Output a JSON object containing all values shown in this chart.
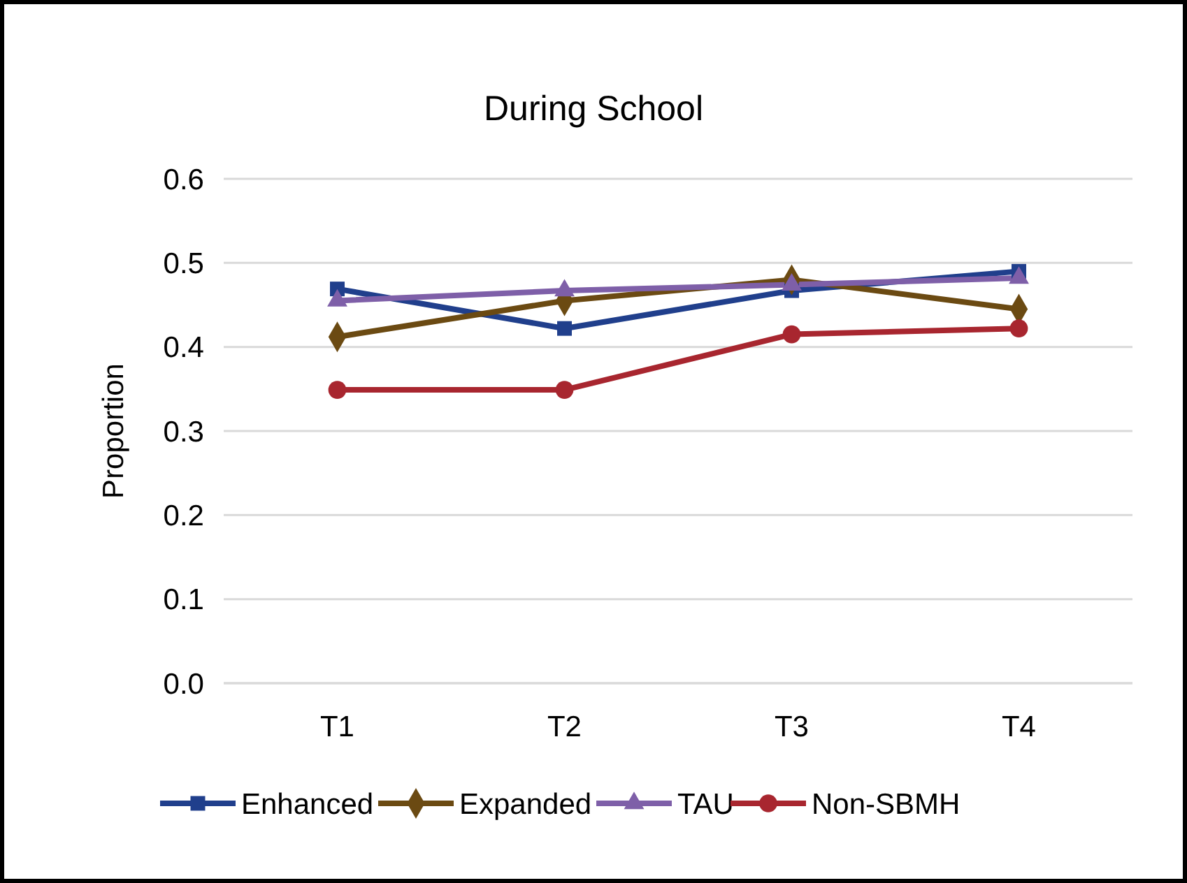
{
  "chart_data": {
    "type": "line",
    "title": "During School",
    "ylabel": "Proportion",
    "categories": [
      "T1",
      "T2",
      "T3",
      "T4"
    ],
    "series": [
      {
        "name": "Enhanced",
        "color": "#203f8c",
        "marker": "square",
        "values": [
          0.469,
          0.422,
          0.467,
          0.49
        ]
      },
      {
        "name": "Expanded",
        "color": "#6b4a12",
        "marker": "diamond",
        "values": [
          0.412,
          0.455,
          0.48,
          0.445
        ]
      },
      {
        "name": "TAU",
        "color": "#7e5fa8",
        "marker": "triangle",
        "values": [
          0.455,
          0.467,
          0.474,
          0.482
        ]
      },
      {
        "name": "Non-SBMH",
        "color": "#a8262f",
        "marker": "circle",
        "values": [
          0.349,
          0.349,
          0.415,
          0.422
        ]
      }
    ],
    "ylim": [
      0,
      0.6
    ],
    "yticks": [
      {
        "value": 0,
        "label": "0.0"
      },
      {
        "value": 0.1,
        "label": "0.1"
      },
      {
        "value": 0.2,
        "label": "0.2"
      },
      {
        "value": 0.3,
        "label": "0.3"
      },
      {
        "value": 0.4,
        "label": "0.4"
      },
      {
        "value": 0.5,
        "label": "0.5"
      },
      {
        "value": 0.6,
        "label": "0.6"
      }
    ],
    "grid": "y",
    "legend": "bottom",
    "line_style": "solid"
  }
}
